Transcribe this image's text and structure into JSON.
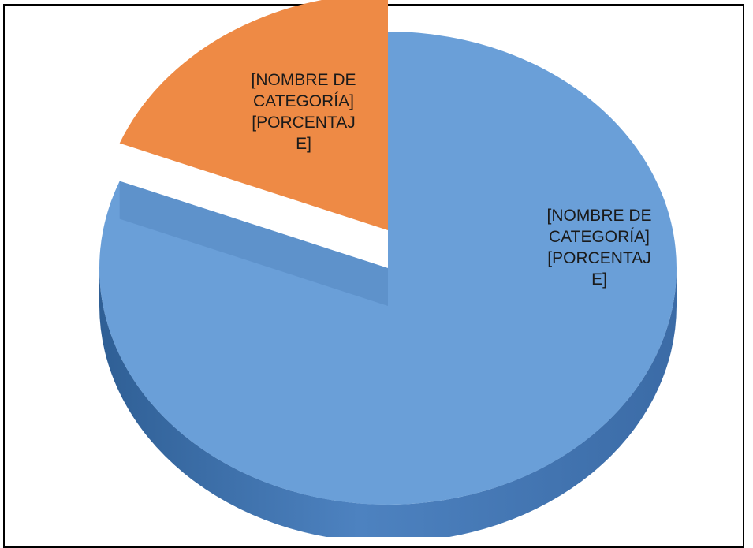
{
  "chart_data": {
    "type": "pie",
    "title": "",
    "three_d": true,
    "legend": "none",
    "slices": [
      {
        "label_lines": [
          "[NOMBRE DE",
          "CATEGORÍA]",
          "[PORCENTAJ",
          "E]"
        ],
        "value": 81,
        "color": "#6A9FD8"
      },
      {
        "label_lines": [
          "[NOMBRE DE",
          "CATEGORÍA]",
          "[PORCENTAJ",
          "E]"
        ],
        "value": 19,
        "color": "#EE8A45"
      }
    ]
  }
}
